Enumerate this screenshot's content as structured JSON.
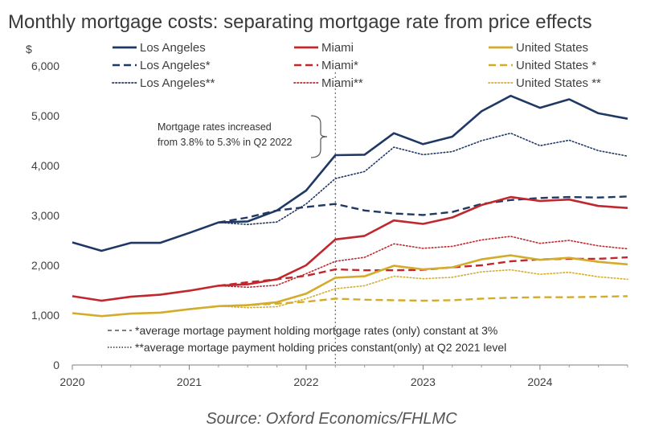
{
  "chart_data": {
    "type": "line",
    "title": "Monthly mortgage costs: separating mortgage rate from price effects",
    "ylabel": "$",
    "ylim": [
      0,
      6000
    ],
    "yticks": [
      "0",
      "1,000",
      "2,000",
      "3,000",
      "4,000",
      "5,000",
      "6,000"
    ],
    "xlim": [
      2020.0,
      2024.75
    ],
    "xticks": [
      "2020",
      "2021",
      "2022",
      "2023",
      "2024"
    ],
    "x": [
      2020.0,
      2020.25,
      2020.5,
      2020.75,
      2021.0,
      2021.25,
      2021.5,
      2021.75,
      2022.0,
      2022.25,
      2022.5,
      2022.75,
      2023.0,
      2023.25,
      2023.5,
      2023.75,
      2024.0,
      2024.25,
      2024.5,
      2024.75
    ],
    "grid": false,
    "legend_position": "top",
    "series": [
      {
        "name": "Los Angeles",
        "color": "#1f3864",
        "style": "solid",
        "values": [
          2460,
          2290,
          2450,
          2450,
          2650,
          2860,
          2880,
          3100,
          3500,
          4210,
          4220,
          4650,
          4430,
          4580,
          5090,
          5400,
          5160,
          5330,
          5050,
          4940
        ]
      },
      {
        "name": "Los Angeles*",
        "color": "#1f3864",
        "style": "dashed",
        "values": [
          null,
          null,
          null,
          null,
          null,
          2860,
          2960,
          3100,
          3170,
          3230,
          3100,
          3040,
          3010,
          3070,
          3230,
          3310,
          3350,
          3370,
          3360,
          3380
        ]
      },
      {
        "name": "Los Angeles**",
        "color": "#1f3864",
        "style": "dotted",
        "values": [
          null,
          null,
          null,
          null,
          null,
          2860,
          2820,
          2870,
          3230,
          3740,
          3880,
          4370,
          4220,
          4280,
          4500,
          4650,
          4400,
          4510,
          4300,
          4190
        ]
      },
      {
        "name": "Miami",
        "color": "#c0282d",
        "style": "solid",
        "values": [
          1380,
          1290,
          1370,
          1410,
          1490,
          1590,
          1620,
          1720,
          2000,
          2520,
          2590,
          2900,
          2830,
          2960,
          3210,
          3370,
          3290,
          3320,
          3190,
          3150
        ]
      },
      {
        "name": "Miami*",
        "color": "#c0282d",
        "style": "dashed",
        "values": [
          null,
          null,
          null,
          null,
          null,
          1590,
          1660,
          1720,
          1790,
          1920,
          1900,
          1900,
          1910,
          1960,
          2000,
          2080,
          2120,
          2130,
          2130,
          2160
        ]
      },
      {
        "name": "Miami**",
        "color": "#c0282d",
        "style": "dotted",
        "values": [
          null,
          null,
          null,
          null,
          null,
          1590,
          1560,
          1600,
          1830,
          2080,
          2160,
          2430,
          2340,
          2380,
          2510,
          2580,
          2440,
          2500,
          2390,
          2330
        ]
      },
      {
        "name": "United States",
        "color": "#d4ac2b",
        "style": "solid",
        "values": [
          1040,
          980,
          1030,
          1050,
          1120,
          1180,
          1200,
          1260,
          1430,
          1750,
          1780,
          1990,
          1920,
          1960,
          2120,
          2200,
          2110,
          2150,
          2070,
          2020
        ]
      },
      {
        "name": "United States *",
        "color": "#d4ac2b",
        "style": "dashed",
        "values": [
          null,
          null,
          null,
          null,
          null,
          1180,
          1200,
          1230,
          1270,
          1330,
          1310,
          1300,
          1290,
          1300,
          1330,
          1350,
          1360,
          1360,
          1370,
          1380
        ]
      },
      {
        "name": "United States **",
        "color": "#d4ac2b",
        "style": "dotted",
        "values": [
          null,
          null,
          null,
          null,
          null,
          1180,
          1150,
          1170,
          1330,
          1530,
          1590,
          1780,
          1730,
          1760,
          1870,
          1910,
          1820,
          1860,
          1770,
          1720
        ]
      }
    ],
    "event_line": {
      "x": 2022.25
    },
    "annotation": [
      "Mortgage rates increased",
      "from 3.8% to 5.3% in Q2 2022"
    ],
    "notes": [
      "*average mortage payment holding mortgage rates (only) constant at 3%",
      "**average mortage payment holding prices constant(only) at Q2 2021 level"
    ],
    "source": "Source: Oxford Economics/FHLMC"
  }
}
